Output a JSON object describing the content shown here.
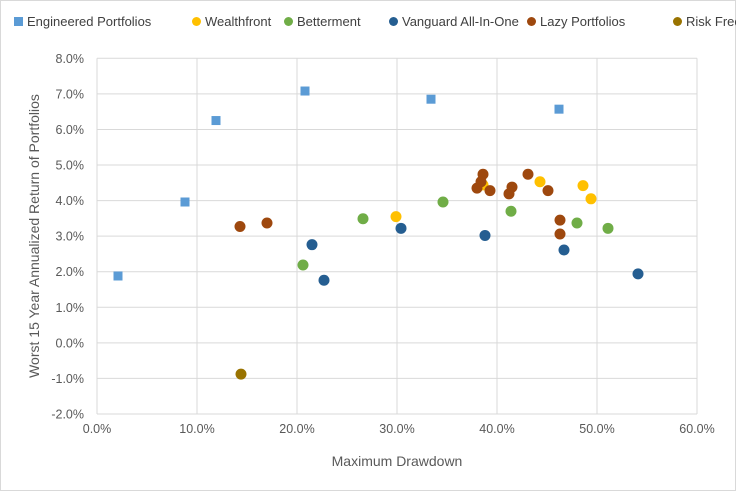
{
  "chart_data": {
    "type": "scatter",
    "xlabel": "Maximum Drawdown",
    "ylabel": "Worst 15 Year Annualized Return of Portfolios",
    "xlim": [
      0,
      60
    ],
    "ylim": [
      -2,
      8
    ],
    "x_ticks": [
      "0.0%",
      "10.0%",
      "20.0%",
      "30.0%",
      "40.0%",
      "50.0%",
      "60.0%"
    ],
    "y_ticks": [
      "8.0%",
      "7.0%",
      "6.0%",
      "5.0%",
      "4.0%",
      "3.0%",
      "2.0%",
      "1.0%",
      "0.0%",
      "-1.0%",
      "-2.0%"
    ],
    "grid": true,
    "legend_position": "top",
    "series": [
      {
        "name": "Engineered Portfolios",
        "color": "#5b9bd5",
        "marker": "square",
        "points": [
          [
            2.1,
            1.88
          ],
          [
            8.8,
            3.96
          ],
          [
            11.9,
            6.25
          ],
          [
            20.8,
            7.08
          ],
          [
            33.4,
            6.85
          ],
          [
            46.2,
            6.57
          ]
        ]
      },
      {
        "name": "Wealthfront",
        "color": "#ffc000",
        "marker": "circle",
        "points": [
          [
            29.9,
            3.55
          ],
          [
            38.6,
            4.44
          ],
          [
            44.3,
            4.53
          ],
          [
            48.6,
            4.42
          ],
          [
            49.4,
            4.05
          ]
        ]
      },
      {
        "name": "Betterment",
        "color": "#70ad47",
        "marker": "circle",
        "points": [
          [
            20.6,
            2.19
          ],
          [
            26.6,
            3.49
          ],
          [
            34.6,
            3.96
          ],
          [
            41.4,
            3.7
          ],
          [
            48.0,
            3.37
          ],
          [
            51.1,
            3.22
          ]
        ]
      },
      {
        "name": "Vanguard All-In-One",
        "color": "#255e91",
        "marker": "circle",
        "points": [
          [
            21.5,
            2.76
          ],
          [
            22.7,
            1.76
          ],
          [
            30.4,
            3.22
          ],
          [
            38.8,
            3.02
          ],
          [
            46.7,
            2.61
          ],
          [
            54.1,
            1.94
          ]
        ]
      },
      {
        "name": "Lazy Portfolios",
        "color": "#9e480e",
        "marker": "circle",
        "points": [
          [
            14.3,
            3.27
          ],
          [
            17.0,
            3.37
          ],
          [
            38.6,
            4.74
          ],
          [
            38.4,
            4.53
          ],
          [
            38.0,
            4.35
          ],
          [
            39.3,
            4.28
          ],
          [
            41.5,
            4.38
          ],
          [
            41.2,
            4.19
          ],
          [
            43.1,
            4.74
          ],
          [
            45.1,
            4.28
          ],
          [
            46.3,
            3.45
          ],
          [
            46.3,
            3.06
          ]
        ]
      },
      {
        "name": "Risk Free",
        "color": "#997300",
        "marker": "circle",
        "points": [
          [
            14.4,
            -0.88
          ]
        ]
      }
    ]
  }
}
